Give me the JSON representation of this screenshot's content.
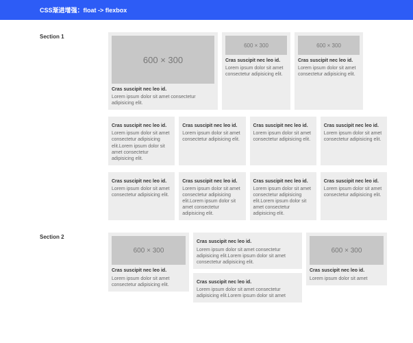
{
  "header": {
    "title": "CSS渐进增强：float -> flexbox"
  },
  "colors": {
    "header_bg": "#2d5cf6",
    "card_bg": "#ededed",
    "placeholder_bg": "#c7c7c7",
    "placeholder_text": "#777777",
    "body_text": "#666666"
  },
  "placeholder": {
    "large": "600 × 300",
    "small": "600 × 300",
    "medium": "600 × 300"
  },
  "section1": {
    "label": "Section 1",
    "hero": {
      "title": "Cras suscipit nec leo id.",
      "body": "Lorem ipsum dolor sit amet consectetur adipisicing elit."
    },
    "side": [
      {
        "title": "Cras suscipit nec leo id.",
        "body": "Lorem ipsum dolor sit amet consectetur adipisicing elit."
      },
      {
        "title": "Cras suscipit nec leo id.",
        "body": "Lorem ipsum dolor sit amet consectetur adipisicing elit."
      }
    ],
    "row2": [
      {
        "title": "Cras suscipit nec leo id.",
        "body": "Lorem ipsum dolor sit amet consectetur adipisicing elit.Lorem ipsum dolor sit amet consectetur adipisicing elit."
      },
      {
        "title": "Cras suscipit nec leo id.",
        "body": "Lorem ipsum dolor sit amet consectetur adipisicing elit."
      },
      {
        "title": "Cras suscipit nec leo id.",
        "body": "Lorem ipsum dolor sit amet consectetur adipisicing elit."
      },
      {
        "title": "Cras suscipit nec leo id.",
        "body": "Lorem ipsum dolor sit amet consectetur adipisicing elit."
      }
    ],
    "row3": [
      {
        "title": "Cras suscipit nec leo id.",
        "body": "Lorem ipsum dolor sit amet consectetur adipisicing elit."
      },
      {
        "title": "Cras suscipit nec leo id.",
        "body": "Lorem ipsum dolor sit amet consectetur adipisicing elit.Lorem ipsum dolor sit amet consectetur adipisicing elit."
      },
      {
        "title": "Cras suscipit nec leo id.",
        "body": "Lorem ipsum dolor sit amet consectetur adipisicing elit.Lorem ipsum dolor sit amet consectetur adipisicing elit."
      },
      {
        "title": "Cras suscipit nec leo id.",
        "body": "Lorem ipsum dolor sit amet consectetur adipisicing elit."
      }
    ]
  },
  "section2": {
    "label": "Section 2",
    "left": {
      "title": "Cras suscipit nec leo id.",
      "body": "Lorem ipsum dolor sit amet consectetur adipisicing elit."
    },
    "mid": [
      {
        "title": "Cras suscipit nec leo id.",
        "body": "Lorem ipsum dolor sit amet consectetur adipisicing elit.Lorem ipsum dolor sit amet consectetur adipisicing elit."
      },
      {
        "title": "Cras suscipit nec leo id.",
        "body": "Lorem ipsum dolor sit amet consectetur adipisicing elit.Lorem ipsum dolor sit amet"
      }
    ],
    "right": {
      "title": "Cras suscipit nec leo id.",
      "body": "Lorem ipsum dolor sit amet"
    }
  }
}
